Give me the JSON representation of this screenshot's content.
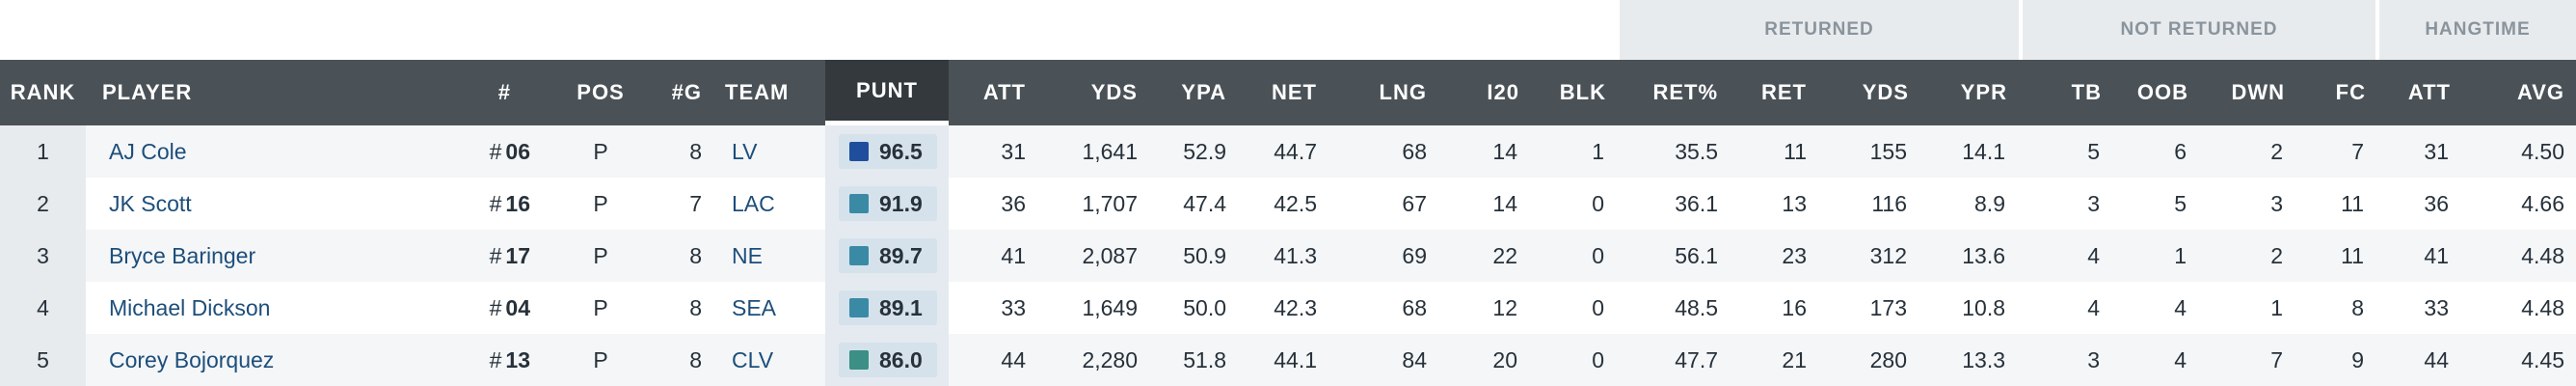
{
  "groups": {
    "returned": "RETURNED",
    "not_returned": "NOT RETURNED",
    "hangtime": "HANGTIME"
  },
  "columns": {
    "rank": "RANK",
    "player": "PLAYER",
    "num": "#",
    "pos": "POS",
    "games": "#G",
    "team": "TEAM",
    "punt": "PUNT",
    "att": "ATT",
    "yds": "YDS",
    "ypa": "YPA",
    "net": "NET",
    "lng": "LNG",
    "i20": "I20",
    "blk": "BLK",
    "ret_pct": "RET%",
    "ret": "RET",
    "ret_yds": "YDS",
    "ypr": "YPR",
    "tb": "TB",
    "oob": "OOB",
    "dwn": "DWN",
    "fc": "FC",
    "hang_att": "ATT",
    "avg": "AVG"
  },
  "colors": {
    "header_bg": "#4b5257",
    "active_header_bg": "#33393d",
    "group_bg": "#e8ebee",
    "grade_elite": "#1f4e9c",
    "grade_high": "#3a8aa5",
    "grade_good": "#3b8f84"
  },
  "rows": [
    {
      "rank": "1",
      "player": "AJ Cole",
      "hash": "#",
      "jersey": "06",
      "pos": "P",
      "games": "8",
      "team": "LV",
      "punt": "96.5",
      "grade_color": "#1f4e9c",
      "att": "31",
      "yds": "1,641",
      "ypa": "52.9",
      "net": "44.7",
      "lng": "68",
      "i20": "14",
      "blk": "1",
      "ret_pct": "35.5",
      "ret": "11",
      "ret_yds": "155",
      "ypr": "14.1",
      "tb": "5",
      "oob": "6",
      "dwn": "2",
      "fc": "7",
      "hang_att": "31",
      "avg": "4.50"
    },
    {
      "rank": "2",
      "player": "JK Scott",
      "hash": "#",
      "jersey": "16",
      "pos": "P",
      "games": "7",
      "team": "LAC",
      "punt": "91.9",
      "grade_color": "#3a8aa5",
      "att": "36",
      "yds": "1,707",
      "ypa": "47.4",
      "net": "42.5",
      "lng": "67",
      "i20": "14",
      "blk": "0",
      "ret_pct": "36.1",
      "ret": "13",
      "ret_yds": "116",
      "ypr": "8.9",
      "tb": "3",
      "oob": "5",
      "dwn": "3",
      "fc": "11",
      "hang_att": "36",
      "avg": "4.66"
    },
    {
      "rank": "3",
      "player": "Bryce Baringer",
      "hash": "#",
      "jersey": "17",
      "pos": "P",
      "games": "8",
      "team": "NE",
      "punt": "89.7",
      "grade_color": "#3a8aa5",
      "att": "41",
      "yds": "2,087",
      "ypa": "50.9",
      "net": "41.3",
      "lng": "69",
      "i20": "22",
      "blk": "0",
      "ret_pct": "56.1",
      "ret": "23",
      "ret_yds": "312",
      "ypr": "13.6",
      "tb": "4",
      "oob": "1",
      "dwn": "2",
      "fc": "11",
      "hang_att": "41",
      "avg": "4.48"
    },
    {
      "rank": "4",
      "player": "Michael Dickson",
      "hash": "#",
      "jersey": "04",
      "pos": "P",
      "games": "8",
      "team": "SEA",
      "punt": "89.1",
      "grade_color": "#3a8aa5",
      "att": "33",
      "yds": "1,649",
      "ypa": "50.0",
      "net": "42.3",
      "lng": "68",
      "i20": "12",
      "blk": "0",
      "ret_pct": "48.5",
      "ret": "16",
      "ret_yds": "173",
      "ypr": "10.8",
      "tb": "4",
      "oob": "4",
      "dwn": "1",
      "fc": "8",
      "hang_att": "33",
      "avg": "4.48"
    },
    {
      "rank": "5",
      "player": "Corey Bojorquez",
      "hash": "#",
      "jersey": "13",
      "pos": "P",
      "games": "8",
      "team": "CLV",
      "punt": "86.0",
      "grade_color": "#3b8f84",
      "att": "44",
      "yds": "2,280",
      "ypa": "51.8",
      "net": "44.1",
      "lng": "84",
      "i20": "20",
      "blk": "0",
      "ret_pct": "47.7",
      "ret": "21",
      "ret_yds": "280",
      "ypr": "13.3",
      "tb": "3",
      "oob": "4",
      "dwn": "7",
      "fc": "9",
      "hang_att": "44",
      "avg": "4.45"
    }
  ]
}
